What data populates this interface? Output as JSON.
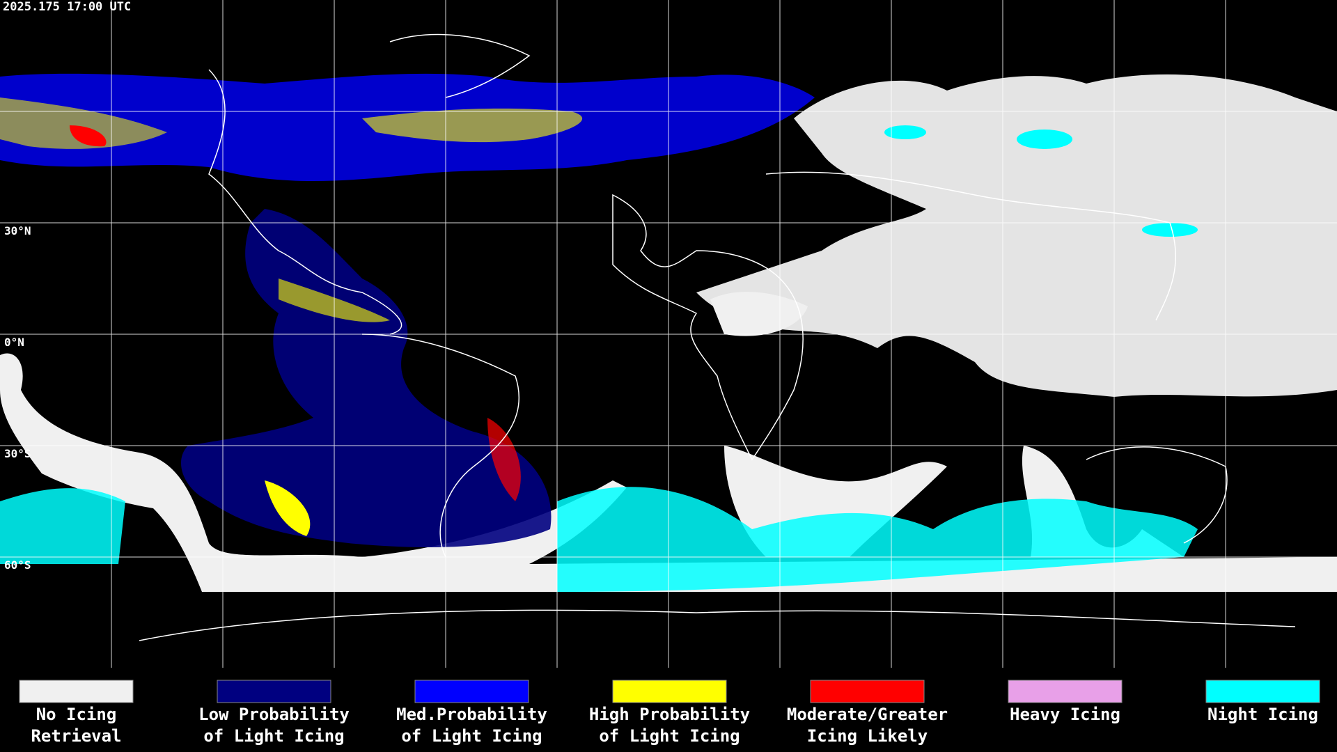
{
  "header": {
    "timestamp": "2025.175 17:00 UTC"
  },
  "latitude_labels": [
    "30°N",
    "0°N",
    "30°S",
    "60°S"
  ],
  "legend": [
    {
      "lines": [
        "No Icing",
        "Retrieval"
      ],
      "color": "#f0f0f0"
    },
    {
      "lines": [
        "Low Probability",
        "of Light Icing"
      ],
      "color": "#000080"
    },
    {
      "lines": [
        "Med.Probability",
        "of Light Icing"
      ],
      "color": "#0000ff"
    },
    {
      "lines": [
        "High Probability",
        "of Light Icing"
      ],
      "color": "#ffff00"
    },
    {
      "lines": [
        "Moderate/Greater",
        "Icing Likely"
      ],
      "color": "#ff0000"
    },
    {
      "lines": [
        "Heavy Icing"
      ],
      "color": "#e8a0e8"
    },
    {
      "lines": [
        "Night Icing"
      ],
      "color": "#00ffff"
    }
  ]
}
